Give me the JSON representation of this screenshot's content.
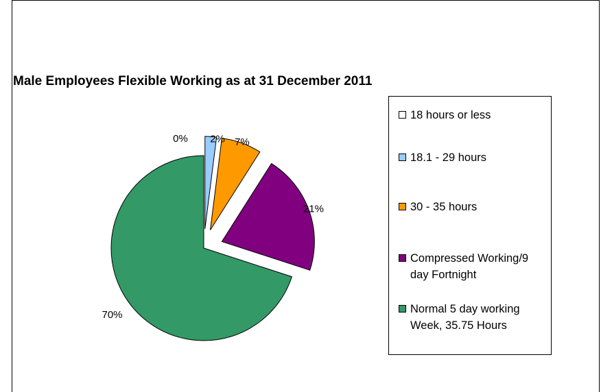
{
  "chart_data": {
    "type": "pie",
    "title": "Male Employees Flexible Working as at 31 December 2011",
    "slices": [
      {
        "name": "18 hours or less",
        "value": 0,
        "label": "0%",
        "color": "#ffffff"
      },
      {
        "name": "18.1 - 29 hours",
        "value": 2,
        "label": "2%",
        "color": "#99ccff"
      },
      {
        "name": "30 - 35 hours",
        "value": 7,
        "label": "7%",
        "color": "#ff9900"
      },
      {
        "name": "Compressed Working/9 day Fortnight",
        "value": 21,
        "label": "21%",
        "color": "#800080"
      },
      {
        "name": "Normal 5 day working Week, 35.75 Hours",
        "value": 70,
        "label": "70%",
        "color": "#339966"
      }
    ],
    "legend_position": "right",
    "exploded": true
  }
}
